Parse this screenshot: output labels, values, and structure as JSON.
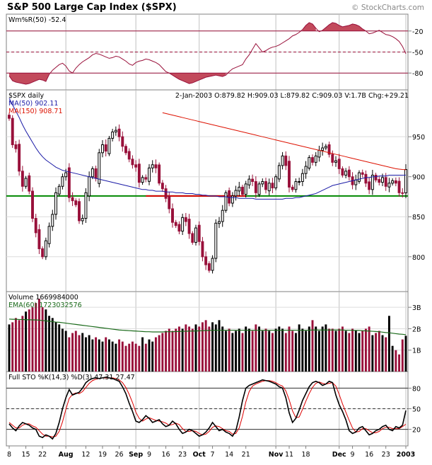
{
  "chart_data": {
    "type": "candlestick",
    "title": "S&P 500 Large Cap Index ($SPX)",
    "watermark": "© StockCharts.com",
    "colors": {
      "up": "#000000",
      "down": "#99103a",
      "willr": "#99103a",
      "willr_fill": "#c24a5c",
      "ma50": "#1a1aa6",
      "ma150": "#dd1100",
      "support": "#008800",
      "support_red": "#dd0000",
      "volume_up": "#000000",
      "volume_down": "#99103a",
      "ema": "#1a6a1a",
      "sto_k": "#000000",
      "sto_d": "#dd0000",
      "grid": "#c0c0c0"
    },
    "x_labels": [
      {
        "i": 0,
        "text": "8"
      },
      {
        "i": 5,
        "text": "15"
      },
      {
        "i": 10,
        "text": "22"
      },
      {
        "i": 17,
        "text": "Aug"
      },
      {
        "i": 23,
        "text": "12"
      },
      {
        "i": 28,
        "text": "19"
      },
      {
        "i": 33,
        "text": "26"
      },
      {
        "i": 38,
        "text": "Sep"
      },
      {
        "i": 42,
        "text": "9"
      },
      {
        "i": 47,
        "text": "16"
      },
      {
        "i": 52,
        "text": "23"
      },
      {
        "i": 57,
        "text": "Oct"
      },
      {
        "i": 61,
        "text": "7"
      },
      {
        "i": 66,
        "text": "14"
      },
      {
        "i": 71,
        "text": "21"
      },
      {
        "i": 80,
        "text": "Nov"
      },
      {
        "i": 84,
        "text": "11"
      },
      {
        "i": 89,
        "text": "18"
      },
      {
        "i": 99,
        "text": "Dec"
      },
      {
        "i": 103,
        "text": "9"
      },
      {
        "i": 108,
        "text": "16"
      },
      {
        "i": 113,
        "text": "23"
      },
      {
        "i": 119,
        "text": "2003"
      }
    ],
    "major_x_labels": [
      "Aug",
      "Sep",
      "Oct",
      "Nov",
      "Dec",
      "2003"
    ],
    "panels": {
      "willr": {
        "label": "Wm%R(50) -52.4",
        "ylim": [
          -100,
          0
        ],
        "ticks": [
          -20,
          -50,
          -80
        ],
        "tick_labels": [
          "-20",
          "-50",
          "-80"
        ],
        "levels": [
          -20,
          -50,
          -80
        ],
        "values": [
          -84,
          -91,
          -93,
          -94,
          -95,
          -96,
          -95,
          -93,
          -91,
          -89,
          -90,
          -92,
          -82,
          -76,
          -72,
          -68,
          -66,
          -70,
          -77,
          -80,
          -73,
          -68,
          -64,
          -61,
          -58,
          -54,
          -52,
          -53,
          -55,
          -57,
          -59,
          -58,
          -56,
          -57,
          -60,
          -63,
          -67,
          -69,
          -65,
          -63,
          -62,
          -60,
          -61,
          -63,
          -65,
          -68,
          -73,
          -78,
          -80,
          -83,
          -86,
          -89,
          -91,
          -93,
          -95,
          -94,
          -92,
          -90,
          -88,
          -86,
          -85,
          -84,
          -83,
          -84,
          -85,
          -83,
          -78,
          -74,
          -72,
          -70,
          -68,
          -60,
          -54,
          -46,
          -38,
          -44,
          -50,
          -48,
          -45,
          -43,
          -42,
          -40,
          -37,
          -34,
          -31,
          -27,
          -25,
          -22,
          -18,
          -12,
          -8,
          -10,
          -16,
          -21,
          -19,
          -15,
          -11,
          -8,
          -9,
          -12,
          -14,
          -13,
          -12,
          -10,
          -11,
          -13,
          -17,
          -20,
          -24,
          -23,
          -21,
          -19,
          -22,
          -25,
          -26,
          -28,
          -31,
          -35,
          -42,
          -52.4
        ]
      },
      "price": {
        "label": "$SPX daily",
        "info": "2-Jan-2003  O:879.82  H:909.03  L:879.82  C:909.03  V:1.7B  Chg:+29.21",
        "ma50_label": "MA(50) 902.11",
        "ma150_label": "MA(150) 908.71",
        "ylim": [
          760,
          1005
        ],
        "ticks": [
          800,
          850,
          900,
          950
        ],
        "tick_labels": [
          "800",
          "850",
          "900",
          "950"
        ],
        "support": 876,
        "close": [
          973,
          940,
          935,
          907,
          888,
          898,
          882,
          848,
          830,
          810,
          800,
          820,
          838,
          853,
          880,
          888,
          900,
          905,
          874,
          870,
          865,
          845,
          848,
          880,
          900,
          910,
          898,
          930,
          940,
          932,
          948,
          956,
          958,
          950,
          938,
          930,
          922,
          915,
          912,
          893,
          899,
          897,
          911,
          915,
          911,
          892,
          885,
          873,
          860,
          843,
          839,
          832,
          849,
          844,
          829,
          818,
          836,
          819,
          800,
          790,
          783,
          798,
          842,
          844,
          858,
          880,
          867,
          876,
          883,
          887,
          878,
          891,
          897,
          894,
          880,
          891,
          894,
          884,
          892,
          886,
          900,
          914,
          926,
          914,
          887,
          884,
          894,
          894,
          904,
          913,
          924,
          918,
          926,
          933,
          936,
          938,
          928,
          918,
          920,
          910,
          902,
          907,
          900,
          890,
          896,
          905,
          903,
          892,
          884,
          902,
          896,
          893,
          899,
          888,
          892,
          895,
          892,
          880,
          879.82,
          909.03
        ],
        "ma50": [
          998,
          990,
          982,
          974,
          965,
          957,
          950,
          943,
          936,
          930,
          925,
          921,
          918,
          915,
          912,
          910,
          908,
          907,
          906,
          905,
          904,
          903,
          902,
          901,
          900,
          899,
          898,
          897,
          896,
          895,
          894,
          893,
          892,
          891,
          890,
          889,
          888,
          887,
          886,
          885,
          884,
          884,
          883,
          883,
          882,
          882,
          882,
          881,
          881,
          881,
          880,
          880,
          880,
          879,
          879,
          879,
          878,
          878,
          877,
          877,
          876,
          876,
          876,
          875,
          875,
          875,
          874,
          874,
          874,
          873,
          873,
          873,
          873,
          873,
          872,
          872,
          872,
          872,
          872,
          872,
          872,
          872,
          872,
          873,
          873,
          873,
          874,
          874,
          875,
          876,
          877,
          878,
          879,
          881,
          883,
          885,
          887,
          889,
          890,
          891,
          892,
          893,
          894,
          895,
          896,
          897,
          898,
          899,
          899,
          900,
          900,
          901,
          901,
          901,
          902,
          902,
          902,
          902,
          902,
          902.11
        ],
        "ma150": [
          980,
          979,
          978,
          977,
          976,
          975,
          974,
          973,
          972,
          971,
          970,
          969,
          968,
          967,
          966,
          965,
          964,
          963,
          962,
          961,
          960,
          959,
          958,
          957,
          956,
          955,
          954,
          953,
          952,
          951,
          950,
          949,
          948,
          947,
          946,
          945,
          944,
          943,
          942,
          941,
          940,
          939,
          938,
          937,
          936,
          935,
          934,
          933,
          932,
          931,
          930,
          929,
          928,
          927,
          926,
          925,
          924,
          923,
          922,
          921,
          920,
          919,
          918,
          917,
          916,
          915,
          914,
          913,
          912,
          911,
          910,
          909.5,
          909,
          908.71
        ]
      },
      "volume": {
        "label": "Volume 1669984000",
        "ema_label": "EMA(60) 1723032576",
        "ylim": [
          0,
          3.6
        ],
        "ticks": [
          1,
          2,
          3
        ],
        "tick_labels": [
          "1B",
          "2B",
          "3B"
        ],
        "values": [
          2.2,
          2.3,
          2.5,
          2.4,
          2.6,
          2.8,
          2.9,
          3.0,
          3.2,
          3.4,
          3.0,
          2.9,
          2.6,
          2.5,
          2.3,
          2.2,
          2.0,
          1.9,
          1.6,
          1.8,
          1.9,
          1.7,
          1.8,
          1.6,
          1.7,
          1.5,
          1.6,
          1.5,
          1.4,
          1.6,
          1.5,
          1.4,
          1.3,
          1.5,
          1.4,
          1.2,
          1.3,
          1.4,
          1.3,
          1.2,
          1.6,
          1.3,
          1.5,
          1.4,
          1.6,
          1.7,
          1.8,
          1.9,
          2.0,
          1.9,
          2.0,
          2.1,
          2.0,
          2.2,
          2.1,
          2.0,
          2.2,
          2.1,
          2.3,
          2.4,
          2.1,
          2.3,
          2.2,
          2.4,
          2.1,
          1.9,
          2.0,
          1.8,
          1.9,
          2.0,
          1.8,
          2.1,
          2.0,
          1.9,
          2.2,
          2.1,
          1.9,
          2.0,
          1.9,
          1.8,
          2.0,
          2.1,
          2.0,
          1.8,
          2.1,
          1.9,
          1.8,
          2.2,
          2.0,
          1.9,
          2.1,
          2.4,
          2.1,
          1.9,
          2.1,
          2.2,
          2.0,
          2.0,
          1.9,
          2.0,
          2.1,
          1.9,
          1.8,
          2.0,
          1.9,
          1.8,
          1.9,
          2.0,
          2.1,
          1.7,
          1.8,
          1.9,
          1.7,
          1.6,
          2.6,
          1.2,
          1.0,
          0.8,
          1.5,
          1.67
        ],
        "ema": [
          2.45,
          2.44,
          2.44,
          2.43,
          2.43,
          2.42,
          2.42,
          2.41,
          2.41,
          2.4,
          2.38,
          2.37,
          2.35,
          2.33,
          2.31,
          2.3,
          2.28,
          2.26,
          2.24,
          2.22,
          2.2,
          2.18,
          2.16,
          2.14,
          2.12,
          2.1,
          2.08,
          2.06,
          2.04,
          2.02,
          2.0,
          1.98,
          1.96,
          1.94,
          1.93,
          1.92,
          1.91,
          1.9,
          1.89,
          1.88,
          1.87,
          1.86,
          1.86,
          1.85,
          1.85,
          1.85,
          1.85,
          1.86,
          1.86,
          1.86,
          1.87,
          1.87,
          1.88,
          1.88,
          1.89,
          1.89,
          1.9,
          1.9,
          1.91,
          1.92,
          1.92,
          1.93,
          1.93,
          1.93,
          1.93,
          1.93,
          1.93,
          1.93,
          1.93,
          1.93,
          1.93,
          1.93,
          1.93,
          1.93,
          1.93,
          1.93,
          1.93,
          1.93,
          1.93,
          1.93,
          1.93,
          1.93,
          1.93,
          1.93,
          1.93,
          1.93,
          1.93,
          1.93,
          1.93,
          1.93,
          1.93,
          1.94,
          1.94,
          1.94,
          1.94,
          1.94,
          1.94,
          1.94,
          1.94,
          1.94,
          1.94,
          1.93,
          1.93,
          1.93,
          1.92,
          1.92,
          1.91,
          1.9,
          1.89,
          1.88,
          1.87,
          1.86,
          1.84,
          1.82,
          1.81,
          1.79,
          1.77,
          1.75,
          1.74,
          1.72
        ]
      },
      "sto": {
        "label": "Full STO %K(14,3) %D(3) 47.31 27.47",
        "ylim": [
          0,
          100
        ],
        "ticks": [
          20,
          50,
          80
        ],
        "tick_labels": [
          "20",
          "50",
          "80"
        ],
        "levels": [
          20,
          50,
          80
        ],
        "k": [
          28,
          22,
          18,
          25,
          30,
          28,
          26,
          22,
          20,
          10,
          8,
          12,
          10,
          6,
          14,
          30,
          50,
          66,
          78,
          70,
          72,
          74,
          80,
          88,
          92,
          94,
          95,
          94,
          95,
          96,
          95,
          94,
          92,
          90,
          82,
          72,
          58,
          46,
          32,
          30,
          34,
          40,
          36,
          30,
          32,
          34,
          28,
          24,
          26,
          32,
          28,
          20,
          14,
          16,
          20,
          18,
          14,
          10,
          12,
          16,
          22,
          30,
          24,
          18,
          20,
          16,
          14,
          10,
          18,
          38,
          62,
          80,
          84,
          86,
          88,
          90,
          92,
          91,
          90,
          88,
          86,
          82,
          80,
          66,
          44,
          30,
          36,
          48,
          62,
          72,
          82,
          88,
          90,
          88,
          84,
          86,
          90,
          88,
          70,
          56,
          46,
          34,
          18,
          14,
          16,
          22,
          24,
          18,
          12,
          14,
          18,
          20,
          24,
          26,
          20,
          18,
          24,
          22,
          26,
          47.31
        ],
        "d": [
          30,
          26,
          22,
          22,
          26,
          28,
          28,
          25,
          23,
          18,
          13,
          10,
          10,
          9,
          10,
          17,
          31,
          49,
          65,
          71,
          73,
          72,
          75,
          81,
          87,
          91,
          93,
          94,
          95,
          95,
          95,
          95,
          94,
          92,
          88,
          81,
          71,
          59,
          45,
          36,
          32,
          35,
          37,
          35,
          33,
          32,
          31,
          29,
          26,
          27,
          29,
          27,
          21,
          17,
          17,
          18,
          17,
          14,
          12,
          13,
          17,
          23,
          25,
          24,
          21,
          18,
          17,
          13,
          14,
          22,
          39,
          60,
          75,
          83,
          86,
          88,
          90,
          91,
          91,
          90,
          88,
          85,
          83,
          76,
          63,
          47,
          37,
          38,
          49,
          61,
          72,
          81,
          87,
          89,
          87,
          86,
          87,
          88,
          83,
          71,
          57,
          45,
          33,
          22,
          16,
          17,
          21,
          21,
          18,
          15,
          15,
          17,
          21,
          23,
          23,
          21,
          21,
          21,
          24,
          27.47
        ]
      }
    }
  }
}
